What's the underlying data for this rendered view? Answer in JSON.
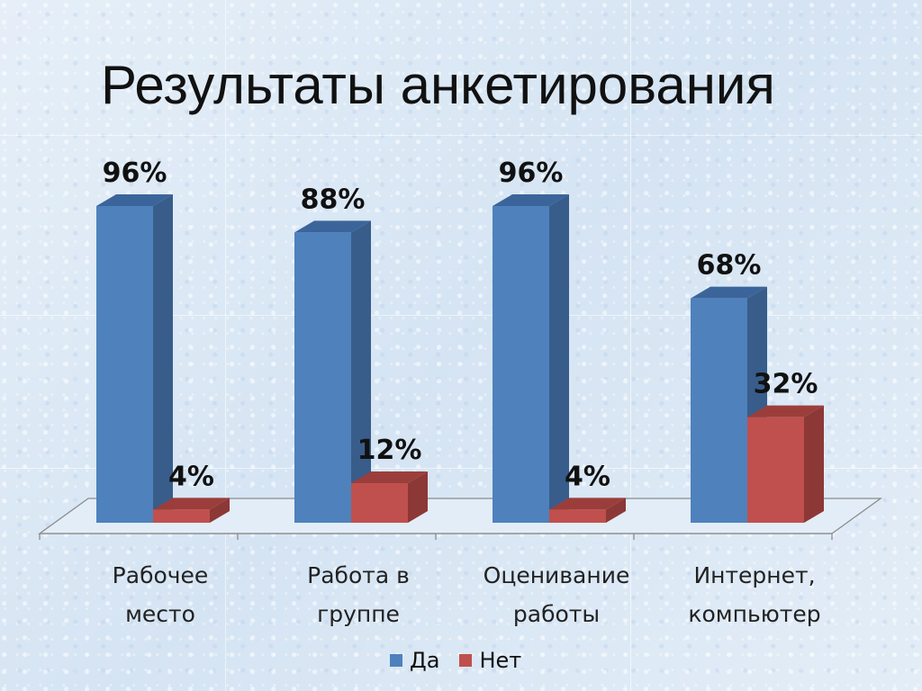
{
  "title": "Результаты анкетирования",
  "chart_data": {
    "type": "bar",
    "categories": [
      "Рабочее место",
      "Работа в группе",
      "Оценивание работы",
      "Интернет, компьютер"
    ],
    "category_lines": [
      [
        "Рабочее",
        "место"
      ],
      [
        "Работа в",
        "группе"
      ],
      [
        "Оценивание",
        "работы"
      ],
      [
        "Интернет,",
        "компьютер"
      ]
    ],
    "series": [
      {
        "name": "Да",
        "values": [
          96,
          88,
          96,
          68
        ],
        "labels": [
          "96%",
          "88%",
          "96%",
          "68%"
        ],
        "color": "#4f81bd"
      },
      {
        "name": "Нет",
        "values": [
          4,
          12,
          4,
          32
        ],
        "labels": [
          "4%",
          "12%",
          "4%",
          "32%"
        ],
        "color": "#c0504d"
      }
    ],
    "ylim": [
      0,
      100
    ],
    "unit": "%",
    "grid": false,
    "legend_position": "bottom",
    "three_d": true
  }
}
